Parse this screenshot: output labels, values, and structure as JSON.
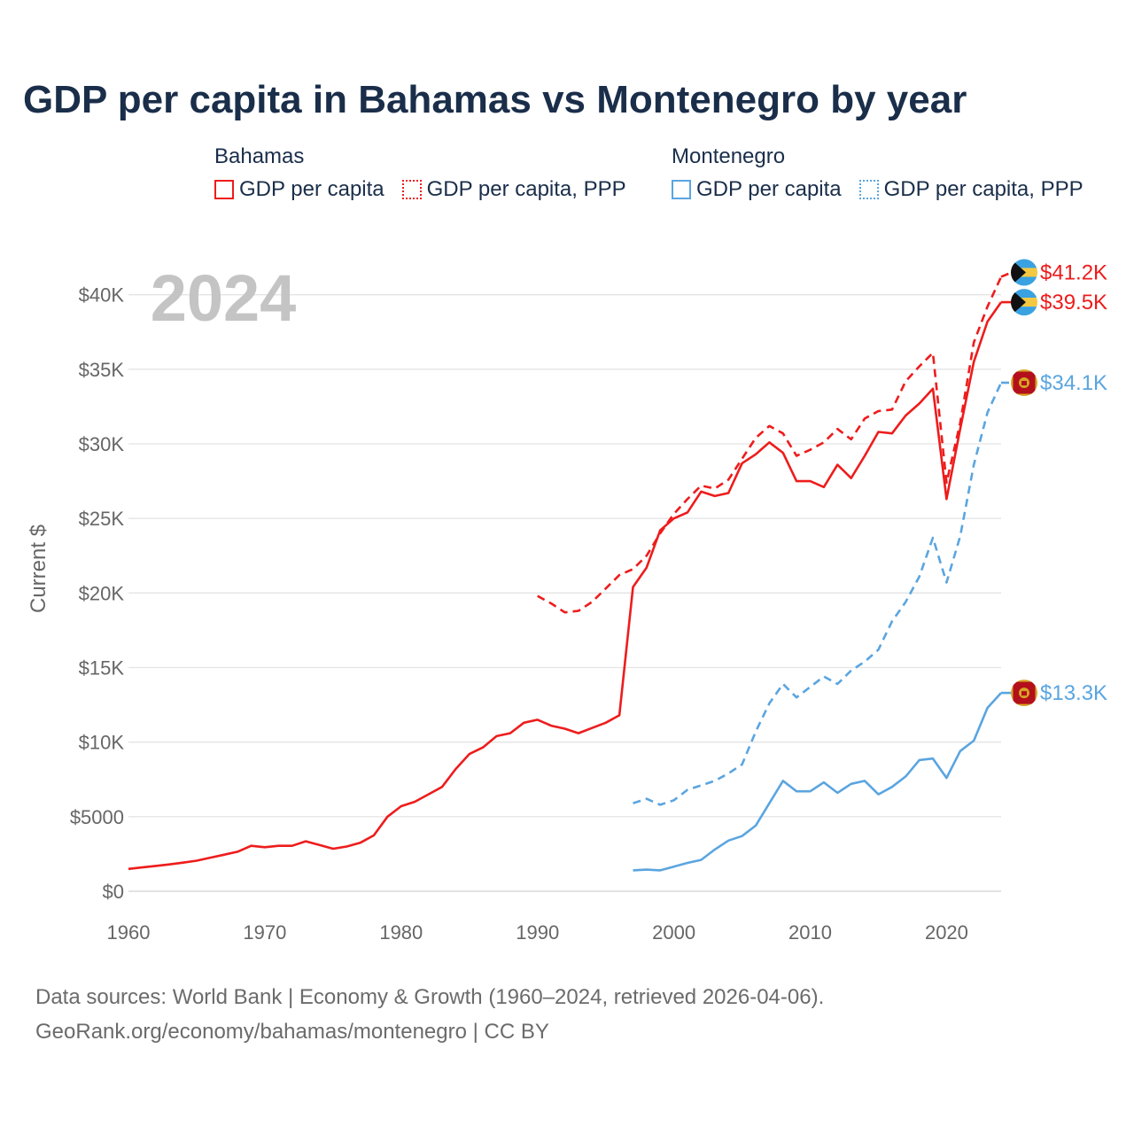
{
  "colors": {
    "bahamas": "#ee1c1c",
    "montenegro": "#5aa5e0",
    "grid": "#e4e4e4",
    "title": "#1a2e4a"
  },
  "chart_data": {
    "type": "line",
    "title": "GDP per capita in Bahamas vs Montenegro by year",
    "ylabel": "Current $",
    "xlabel": "",
    "year_label": "2024",
    "xlim": [
      1960,
      2024
    ],
    "ylim": [
      0,
      42000
    ],
    "x_ticks": [
      1960,
      1970,
      1980,
      1990,
      2000,
      2010,
      2020
    ],
    "y_ticks": [
      {
        "value": 0,
        "label": "$0"
      },
      {
        "value": 5000,
        "label": "$5000"
      },
      {
        "value": 10000,
        "label": "$10K"
      },
      {
        "value": 15000,
        "label": "$15K"
      },
      {
        "value": 20000,
        "label": "$20K"
      },
      {
        "value": 25000,
        "label": "$25K"
      },
      {
        "value": 30000,
        "label": "$30K"
      },
      {
        "value": 35000,
        "label": "$35K"
      },
      {
        "value": 40000,
        "label": "$40K"
      }
    ],
    "legend": [
      {
        "country": "Bahamas",
        "items": [
          "GDP per capita",
          "GDP per capita, PPP"
        ]
      },
      {
        "country": "Montenegro",
        "items": [
          "GDP per capita",
          "GDP per capita, PPP"
        ]
      }
    ],
    "series": [
      {
        "name": "Bahamas GDP per capita PPP",
        "country": "Bahamas",
        "style": "dashed",
        "end_label": "$41.2K",
        "x": [
          1990,
          1991,
          1992,
          1993,
          1994,
          1995,
          1996,
          1997,
          1998,
          1999,
          2000,
          2001,
          2002,
          2003,
          2004,
          2005,
          2006,
          2007,
          2008,
          2009,
          2010,
          2011,
          2012,
          2013,
          2014,
          2015,
          2016,
          2017,
          2018,
          2019,
          2020,
          2021,
          2022,
          2023,
          2024
        ],
        "values": [
          19800,
          19300,
          18700,
          18800,
          19400,
          20300,
          21200,
          21600,
          22500,
          24000,
          25300,
          26300,
          27200,
          27000,
          27600,
          29000,
          30400,
          31200,
          30700,
          29200,
          29600,
          30100,
          31000,
          30300,
          31700,
          32200,
          32300,
          34200,
          35200,
          36100,
          27400,
          31400,
          36800,
          39200,
          41200
        ]
      },
      {
        "name": "Bahamas GDP per capita",
        "country": "Bahamas",
        "style": "solid",
        "end_label": "$39.5K",
        "x": [
          1960,
          1961,
          1962,
          1963,
          1964,
          1965,
          1966,
          1967,
          1968,
          1969,
          1970,
          1971,
          1972,
          1973,
          1974,
          1975,
          1976,
          1977,
          1978,
          1979,
          1980,
          1981,
          1982,
          1983,
          1984,
          1985,
          1986,
          1987,
          1988,
          1989,
          1990,
          1991,
          1992,
          1993,
          1994,
          1995,
          1996,
          1997,
          1998,
          1999,
          2000,
          2001,
          2002,
          2003,
          2004,
          2005,
          2006,
          2007,
          2008,
          2009,
          2010,
          2011,
          2012,
          2013,
          2014,
          2015,
          2016,
          2017,
          2018,
          2019,
          2020,
          2021,
          2022,
          2023,
          2024
        ],
        "values": [
          1500,
          1600,
          1700,
          1800,
          1920,
          2050,
          2250,
          2450,
          2650,
          3050,
          2950,
          3050,
          3050,
          3350,
          3100,
          2850,
          3000,
          3250,
          3750,
          5000,
          5700,
          6000,
          6500,
          7000,
          8200,
          9200,
          9650,
          10400,
          10600,
          11300,
          11500,
          11100,
          10900,
          10600,
          10950,
          11300,
          11800,
          20400,
          21700,
          24200,
          25000,
          25400,
          26800,
          26500,
          26700,
          28700,
          29300,
          30100,
          29400,
          27500,
          27500,
          27100,
          28600,
          27700,
          29200,
          30800,
          30700,
          31900,
          32700,
          33700,
          26300,
          31000,
          35500,
          38200,
          39500
        ]
      },
      {
        "name": "Montenegro GDP per capita PPP",
        "country": "Montenegro",
        "style": "dashed",
        "end_label": "$34.1K",
        "x": [
          1997,
          1998,
          1999,
          2000,
          2001,
          2002,
          2003,
          2004,
          2005,
          2006,
          2007,
          2008,
          2009,
          2010,
          2011,
          2012,
          2013,
          2014,
          2015,
          2016,
          2017,
          2018,
          2019,
          2020,
          2021,
          2022,
          2023,
          2024
        ],
        "values": [
          5900,
          6200,
          5800,
          6100,
          6800,
          7100,
          7400,
          7900,
          8500,
          10700,
          12600,
          13900,
          13000,
          13700,
          14400,
          13900,
          14800,
          15400,
          16200,
          18100,
          19400,
          21100,
          23700,
          20700,
          23800,
          28600,
          32100,
          34100
        ]
      },
      {
        "name": "Montenegro GDP per capita",
        "country": "Montenegro",
        "style": "solid",
        "end_label": "$13.3K",
        "x": [
          1997,
          1998,
          1999,
          2000,
          2001,
          2002,
          2003,
          2004,
          2005,
          2006,
          2007,
          2008,
          2009,
          2010,
          2011,
          2012,
          2013,
          2014,
          2015,
          2016,
          2017,
          2018,
          2019,
          2020,
          2021,
          2022,
          2023,
          2024
        ],
        "values": [
          1400,
          1450,
          1400,
          1650,
          1900,
          2100,
          2800,
          3400,
          3700,
          4400,
          5900,
          7400,
          6700,
          6700,
          7300,
          6600,
          7200,
          7400,
          6500,
          7000,
          7700,
          8800,
          8900,
          7600,
          9400,
          10100,
          12300,
          13300
        ]
      }
    ]
  },
  "footer": {
    "line1": "Data sources: World Bank | Economy & Growth (1960–2024, retrieved 2026-04-06).",
    "line2": "GeoRank.org/economy/bahamas/montenegro | CC BY"
  }
}
